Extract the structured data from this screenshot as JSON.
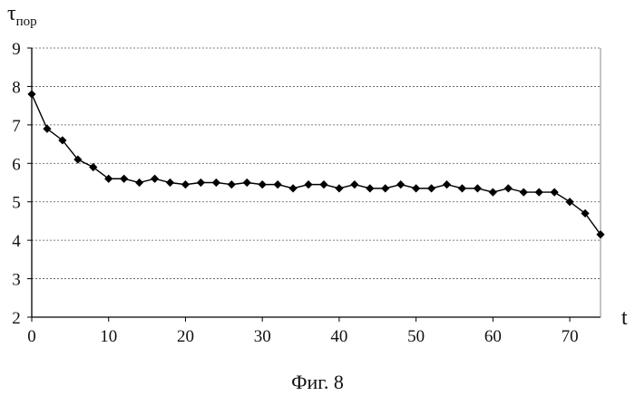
{
  "chart_data": {
    "type": "line",
    "ylabel_main": "τ",
    "ylabel_sub": "пор",
    "xlabel": "t",
    "xlim": [
      0,
      74
    ],
    "ylim": [
      2,
      9
    ],
    "xticks": [
      0,
      10,
      20,
      30,
      40,
      50,
      60,
      70
    ],
    "yticks": [
      2,
      3,
      4,
      5,
      6,
      7,
      8,
      9
    ],
    "grid": "horizontal dotted",
    "legend": "none",
    "line_color": "#000000",
    "marker": "diamond",
    "series": [
      {
        "x": [
          0,
          2,
          4,
          6,
          8,
          10,
          12,
          14,
          16,
          18,
          20,
          22,
          24,
          26,
          28,
          30,
          32,
          34,
          36,
          38,
          40,
          42,
          44,
          46,
          48,
          50,
          52,
          54,
          56,
          58,
          60,
          62,
          64,
          66,
          68,
          70,
          72,
          74
        ],
        "y": [
          7.8,
          6.9,
          6.6,
          6.1,
          5.9,
          5.6,
          5.6,
          5.5,
          5.6,
          5.5,
          5.45,
          5.5,
          5.5,
          5.45,
          5.5,
          5.45,
          5.45,
          5.35,
          5.45,
          5.45,
          5.35,
          5.45,
          5.35,
          5.35,
          5.45,
          5.35,
          5.35,
          5.45,
          5.35,
          5.35,
          5.25,
          5.35,
          5.25,
          5.25,
          5.25,
          5.0,
          4.7,
          4.15
        ]
      }
    ]
  },
  "caption": "Фиг. 8"
}
